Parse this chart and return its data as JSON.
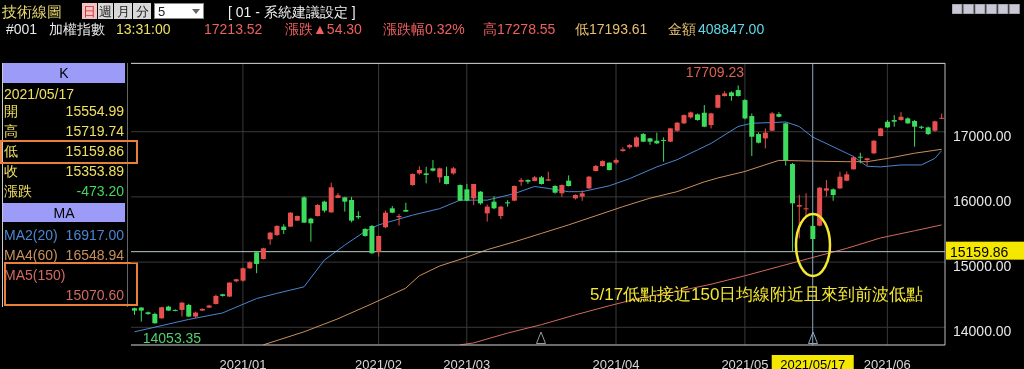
{
  "chart_data": {
    "type": "candlestick",
    "title": "技術線圖",
    "categories": [
      null,
      null,
      null,
      null,
      null,
      null,
      null,
      null,
      null,
      null,
      null,
      null,
      null,
      null,
      null,
      null,
      "2021/01",
      null,
      null,
      null,
      null,
      null,
      null,
      null,
      null,
      null,
      null,
      null,
      null,
      null,
      null,
      null,
      null,
      null,
      null,
      null,
      "2021/02",
      null,
      null,
      null,
      null,
      null,
      null,
      null,
      null,
      null,
      null,
      null,
      null,
      "2021/03",
      null,
      null,
      null,
      null,
      null,
      null,
      null,
      null,
      null,
      null,
      null,
      null,
      null,
      null,
      null,
      null,
      null,
      null,
      null,
      null,
      null,
      "2021/04",
      null,
      null,
      null,
      null,
      null,
      null,
      null,
      null,
      null,
      null,
      null,
      null,
      null,
      null,
      null,
      null,
      null,
      null,
      "2021/05",
      null,
      null,
      null,
      null,
      null,
      null,
      null,
      null,
      null,
      "2021/05/17",
      null,
      null,
      null,
      null,
      null,
      null,
      null,
      null,
      null,
      null,
      "2021/06",
      null,
      null,
      null,
      null,
      null,
      null,
      null,
      null
    ],
    "ohlc": [
      [
        14292,
        14300,
        14190,
        14256
      ],
      [
        14302,
        14310,
        14087,
        14256
      ],
      [
        14230,
        14240,
        14190,
        14205
      ],
      [
        14205,
        14225,
        14053.35,
        14062
      ],
      [
        14138,
        14315,
        14130,
        14307
      ],
      [
        14317,
        14330,
        14250,
        14256
      ],
      [
        14266,
        14275,
        14245,
        14251
      ],
      [
        14266,
        14385,
        14164,
        14378
      ],
      [
        14343,
        14360,
        14160,
        14164
      ],
      [
        14164,
        14240,
        14145,
        14225
      ],
      [
        14256,
        14290,
        14250,
        14282
      ],
      [
        14302,
        14345,
        14297,
        14333
      ],
      [
        14358,
        14500,
        14350,
        14481
      ],
      [
        14506,
        14515,
        14470,
        14481
      ],
      [
        14471,
        14690,
        14465,
        14685
      ],
      [
        14706,
        14740,
        14690,
        14736
      ],
      [
        14715,
        14915,
        14700,
        14905
      ],
      [
        14905,
        15010,
        14895,
        14997
      ],
      [
        15150,
        15160,
        14830,
        14971
      ],
      [
        15048,
        15220,
        15040,
        15211
      ],
      [
        15349,
        15460,
        15265,
        15452
      ],
      [
        15416,
        15565,
        15400,
        15554
      ],
      [
        15544,
        15580,
        15430,
        15492
      ],
      [
        15544,
        15765,
        15540,
        15758
      ],
      [
        15636,
        15715,
        15630,
        15707
      ],
      [
        15993,
        16010,
        15600,
        15605
      ],
      [
        15666,
        15680,
        15314,
        15595
      ],
      [
        15707,
        15890,
        15700,
        15876
      ],
      [
        15927,
        15940,
        15760,
        15789
      ],
      [
        15763,
        16218,
        15755,
        16147
      ],
      [
        15984,
        16060,
        15980,
        16025
      ],
      [
        15993,
        16000,
        15775,
        15927
      ],
      [
        15952,
        16000,
        15610,
        15636
      ],
      [
        15707,
        15780,
        15660,
        15687
      ],
      [
        15508,
        15520,
        15390,
        15401
      ],
      [
        15554,
        15570,
        15130,
        15135
      ],
      [
        15160,
        15410,
        15084,
        15400
      ],
      [
        15534,
        15790,
        15520,
        15758
      ],
      [
        15825,
        15860,
        15750,
        15758
      ],
      [
        15687,
        15740,
        15560,
        15707
      ],
      [
        15800,
        15910,
        15770,
        15774
      ],
      [
        16182,
        16360,
        16170,
        16351
      ],
      [
        16361,
        16470,
        16340,
        16412
      ],
      [
        16361,
        16463,
        16208,
        16336
      ],
      [
        16438,
        16565,
        16390,
        16402
      ],
      [
        16300,
        16450,
        16218,
        16438
      ],
      [
        16320,
        16463,
        16190,
        16198
      ],
      [
        16361,
        16460,
        16340,
        16438
      ],
      [
        16182,
        16190,
        15940,
        15942
      ],
      [
        16116,
        16200,
        15935,
        15942
      ],
      [
        15978,
        16200,
        15875,
        16198
      ],
      [
        16080,
        16090,
        15880,
        15901
      ],
      [
        15748,
        15880,
        15620,
        15850
      ],
      [
        15927,
        16010,
        15810,
        15825
      ],
      [
        15707,
        15860,
        15660,
        15850
      ],
      [
        15917,
        15950,
        15850,
        15901
      ],
      [
        15942,
        16175,
        15935,
        16167
      ],
      [
        16233,
        16290,
        16170,
        16259
      ],
      [
        16259,
        16270,
        16200,
        16233
      ],
      [
        16244,
        16320,
        16238,
        16300
      ],
      [
        16300,
        16320,
        16190,
        16198
      ],
      [
        16249,
        16387,
        16244,
        16269
      ],
      [
        16167,
        16180,
        16050,
        16065
      ],
      [
        16055,
        16190,
        16000,
        16182
      ],
      [
        16249,
        16330,
        16160,
        16167
      ],
      [
        15978,
        16040,
        15960,
        16029
      ],
      [
        16004,
        16100,
        15940,
        16055
      ],
      [
        16131,
        16320,
        16120,
        16310
      ],
      [
        16397,
        16490,
        16390,
        16474
      ],
      [
        16474,
        16560,
        16465,
        16550
      ],
      [
        16525,
        16530,
        16405,
        16412
      ],
      [
        16525,
        16590,
        16500,
        16565
      ],
      [
        16703,
        16760,
        16695,
        16729
      ],
      [
        16760,
        16810,
        16740,
        16796
      ],
      [
        16770,
        16930,
        16760,
        16913
      ],
      [
        16964,
        16980,
        16840,
        16847
      ],
      [
        16898,
        16908,
        16800,
        16847
      ],
      [
        16862,
        16985,
        16810,
        16821
      ],
      [
        16872,
        16913,
        16540,
        16862
      ],
      [
        16847,
        17060,
        16840,
        17051
      ],
      [
        17015,
        17150,
        17000,
        17138
      ],
      [
        17128,
        17265,
        17120,
        17255
      ],
      [
        17220,
        17310,
        17200,
        17296
      ],
      [
        17266,
        17280,
        17170,
        17179
      ],
      [
        17291,
        17409,
        17070,
        17077
      ],
      [
        17102,
        17290,
        17050,
        17281
      ],
      [
        17368,
        17570,
        17360,
        17562
      ],
      [
        17547,
        17620,
        17540,
        17587
      ],
      [
        17603,
        17620,
        17475,
        17547
      ],
      [
        17639,
        17709.23,
        17540,
        17547
      ],
      [
        17485,
        17500,
        17190,
        17204
      ],
      [
        17240,
        17280,
        16627,
        16923
      ],
      [
        16964,
        16990,
        16820,
        16831
      ],
      [
        16898,
        17050,
        16744,
        16985
      ],
      [
        17015,
        17300,
        17010,
        17281
      ],
      [
        17270,
        17300,
        17220,
        17230
      ],
      [
        17128,
        17140,
        16480,
        16566
      ],
      [
        16504,
        16520,
        15165,
        15901
      ],
      [
        15850,
        16030,
        15365,
        15875
      ],
      [
        15809,
        16055,
        15697,
        15825
      ],
      [
        15554.99,
        15719.74,
        15159.86,
        15353.89
      ],
      [
        15559,
        16150,
        15550,
        16141
      ],
      [
        16096,
        16260,
        16004,
        16131
      ],
      [
        16116,
        16130,
        15940,
        16029
      ],
      [
        16131,
        16387,
        16120,
        16310
      ],
      [
        16249,
        16390,
        16240,
        16346
      ],
      [
        16423,
        16630,
        16420,
        16607
      ],
      [
        16617,
        16678,
        16515,
        16607
      ],
      [
        16566,
        16600,
        16480,
        16591
      ],
      [
        16668,
        16870,
        16660,
        16862
      ],
      [
        16934,
        17060,
        16930,
        17051
      ],
      [
        17153,
        17180,
        17060,
        17066
      ],
      [
        17179,
        17255,
        17077,
        17153
      ],
      [
        17179,
        17300,
        17170,
        17230
      ],
      [
        17204,
        17220,
        17120,
        17128
      ],
      [
        17164,
        17180,
        16770,
        17077
      ],
      [
        17077,
        17090,
        17040,
        17061
      ],
      [
        17066,
        17080,
        16950,
        16964
      ],
      [
        17015,
        17170,
        17000,
        17159.22
      ],
      [
        17200,
        17278.55,
        17193.61,
        17213.52
      ]
    ],
    "colors": [
      "#3ddc5f",
      "#3ddc5f",
      "#3ddc5f",
      "#3ddc5f",
      "#e8504f",
      "#3ddc5f",
      "#3ddc5f",
      "#e8504f",
      "#3ddc5f",
      "#e8504f",
      "#e8504f",
      "#e8504f",
      "#e8504f",
      "#3ddc5f",
      "#e8504f",
      "#e8504f",
      "#e8504f",
      "#e8504f",
      "#3ddc5f",
      "#e8504f",
      "#e8504f",
      "#e8504f",
      "#3ddc5f",
      "#e8504f",
      "#e8504f",
      "#3ddc5f",
      "#3ddc5f",
      "#e8504f",
      "#3ddc5f",
      "#e8504f",
      "#e8504f",
      "#3ddc5f",
      "#3ddc5f",
      "#3ddc5f",
      "#3ddc5f",
      "#3ddc5f",
      "#e8504f",
      "#e8504f",
      "#3ddc5f",
      "#e8504f",
      "#3ddc5f",
      "#e8504f",
      "#e8504f",
      "#3ddc5f",
      "#3ddc5f",
      "#e8504f",
      "#3ddc5f",
      "#e8504f",
      "#3ddc5f",
      "#3ddc5f",
      "#e8504f",
      "#3ddc5f",
      "#e8504f",
      "#3ddc5f",
      "#e8504f",
      "#3ddc5f",
      "#e8504f",
      "#e8504f",
      "#3ddc5f",
      "#e8504f",
      "#3ddc5f",
      "#e8504f",
      "#3ddc5f",
      "#e8504f",
      "#3ddc5f",
      "#e8504f",
      "#e8504f",
      "#e8504f",
      "#e8504f",
      "#e8504f",
      "#3ddc5f",
      "#e8504f",
      "#e8504f",
      "#e8504f",
      "#e8504f",
      "#3ddc5f",
      "#3ddc5f",
      "#3ddc5f",
      "#3ddc5f",
      "#e8504f",
      "#e8504f",
      "#e8504f",
      "#e8504f",
      "#3ddc5f",
      "#3ddc5f",
      "#e8504f",
      "#e8504f",
      "#e8504f",
      "#3ddc5f",
      "#3ddc5f",
      "#3ddc5f",
      "#3ddc5f",
      "#3ddc5f",
      "#e8504f",
      "#e8504f",
      "#3ddc5f",
      "#3ddc5f",
      "#3ddc5f",
      "#e8504f",
      "#e8504f",
      "#3ddc5f",
      "#e8504f",
      "#e8504f",
      "#3ddc5f",
      "#e8504f",
      "#e8504f",
      "#e8504f",
      "#3ddc5f",
      "#e8504f",
      "#e8504f",
      "#e8504f",
      "#3ddc5f",
      "#3ddc5f",
      "#e8504f",
      "#3ddc5f",
      "#3ddc5f",
      "#3ddc5f",
      "#3ddc5f",
      "#e8504f",
      "#e8504f"
    ],
    "series": [
      {
        "name": "MA2(20)",
        "type": "line",
        "color": "#4a86d0",
        "values": [
          13930,
          null,
          null,
          null,
          null,
          null,
          null,
          null,
          14120,
          null,
          null,
          null,
          null,
          14220,
          null,
          null,
          null,
          null,
          14440,
          null,
          null,
          14520,
          null,
          null,
          null,
          14620,
          null,
          null,
          15030,
          null,
          null,
          15260,
          null,
          null,
          15470,
          null,
          15570,
          null,
          null,
          null,
          null,
          15720,
          null,
          null,
          null,
          15820,
          null,
          null,
          15950,
          null,
          null,
          null,
          15950,
          null,
          null,
          null,
          16050,
          null,
          null,
          16160,
          null,
          16130,
          null,
          null,
          16080,
          null,
          16080,
          null,
          null,
          null,
          16170,
          null,
          null,
          16280,
          null,
          null,
          null,
          16460,
          null,
          null,
          16570,
          null,
          null,
          16720,
          null,
          16820,
          null,
          null,
          null,
          17080,
          null,
          17130,
          null,
          null,
          17140,
          null,
          17150,
          null,
          17080,
          null,
          16917,
          null,
          null,
          16770,
          null,
          null,
          16620,
          null,
          16470,
          null,
          16460,
          null,
          null,
          16490,
          null,
          null,
          16490,
          null,
          16590,
          16710
        ]
      },
      {
        "name": "MA4(60)",
        "type": "line",
        "color": "#c8905a",
        "values": [
          null,
          null,
          null,
          null,
          null,
          null,
          null,
          null,
          null,
          null,
          null,
          null,
          null,
          null,
          null,
          null,
          null,
          null,
          null,
          13730,
          null,
          null,
          null,
          null,
          null,
          13930,
          null,
          null,
          null,
          null,
          14130,
          null,
          null,
          null,
          null,
          14360,
          null,
          null,
          null,
          null,
          14600,
          null,
          14790,
          null,
          null,
          14940,
          null,
          null,
          15040,
          null,
          null,
          null,
          15190,
          null,
          null,
          null,
          15310,
          null,
          null,
          null,
          15440,
          null,
          null,
          null,
          15570,
          null,
          null,
          null,
          15710,
          null,
          null,
          null,
          15850,
          null,
          null,
          null,
          15980,
          null,
          null,
          null,
          16080,
          null,
          null,
          null,
          16230,
          null,
          16290,
          null,
          null,
          null,
          16390,
          null,
          null,
          null,
          null,
          16560,
          null,
          null,
          null,
          null,
          16548.94,
          null,
          null,
          null,
          null,
          16540,
          null,
          null,
          16540,
          null,
          null,
          16590,
          null,
          null,
          null,
          16670,
          null,
          null,
          null,
          16730
        ]
      },
      {
        "name": "MA5(150)",
        "type": "line",
        "color": "#d06a5e",
        "values": [
          null,
          null,
          null,
          null,
          null,
          null,
          null,
          null,
          null,
          null,
          null,
          null,
          null,
          null,
          null,
          null,
          null,
          null,
          null,
          null,
          null,
          null,
          null,
          null,
          null,
          null,
          null,
          null,
          null,
          null,
          null,
          null,
          null,
          null,
          null,
          null,
          null,
          null,
          null,
          null,
          null,
          null,
          null,
          null,
          null,
          null,
          null,
          null,
          13730,
          null,
          13760,
          null,
          null,
          null,
          null,
          13910,
          null,
          null,
          null,
          null,
          14040,
          null,
          null,
          null,
          null,
          14190,
          null,
          null,
          null,
          null,
          14330,
          null,
          null,
          null,
          null,
          14460,
          null,
          null,
          null,
          null,
          14550,
          null,
          null,
          null,
          null,
          14660,
          null,
          null,
          null,
          null,
          14790,
          null,
          null,
          null,
          null,
          14930,
          null,
          null,
          null,
          null,
          15070.6,
          null,
          null,
          null,
          null,
          15210,
          null,
          null,
          null,
          null,
          15370,
          null,
          null,
          null,
          null,
          15480,
          null,
          null,
          null,
          15570
        ]
      }
    ],
    "ylim": [
      13728,
      18054
    ],
    "yticks": [
      {
        "value": 14000,
        "label": "14000.00"
      },
      {
        "value": 15000,
        "label": "15000.00"
      },
      {
        "value": 16000,
        "label": "16000.00"
      },
      {
        "value": 17000,
        "label": "17000.00"
      }
    ],
    "ref_lines": [
      {
        "axis": "y",
        "value": 15159.86,
        "label": "15159.86",
        "color": "#b8c8c8"
      },
      {
        "axis": "x",
        "value": "2021/05/17",
        "label": null,
        "color": "#8aa8c0"
      }
    ],
    "grid": true,
    "legend": "left",
    "annotations": [
      "17709.23",
      "14053.35",
      "5/17低點接近150日均線附近且來到前波低點",
      "日",
      "週",
      "月",
      "分",
      "5",
      "[ 01 - 系統建議設定 ]",
      "#001",
      "加權指數",
      "13:31:00",
      "17213.52",
      "漲跌▲54.30",
      "漲跌幅0.32%",
      "高17278.55",
      "低17193.61",
      "金額",
      "408847.00",
      "K",
      "開",
      "15554.99",
      "高",
      "15719.74",
      "低",
      "15159.86",
      "收",
      "15353.89",
      "漲跌",
      "-473.20",
      "MA",
      "16917.00",
      "16548.94",
      "15070.60"
    ]
  }
}
